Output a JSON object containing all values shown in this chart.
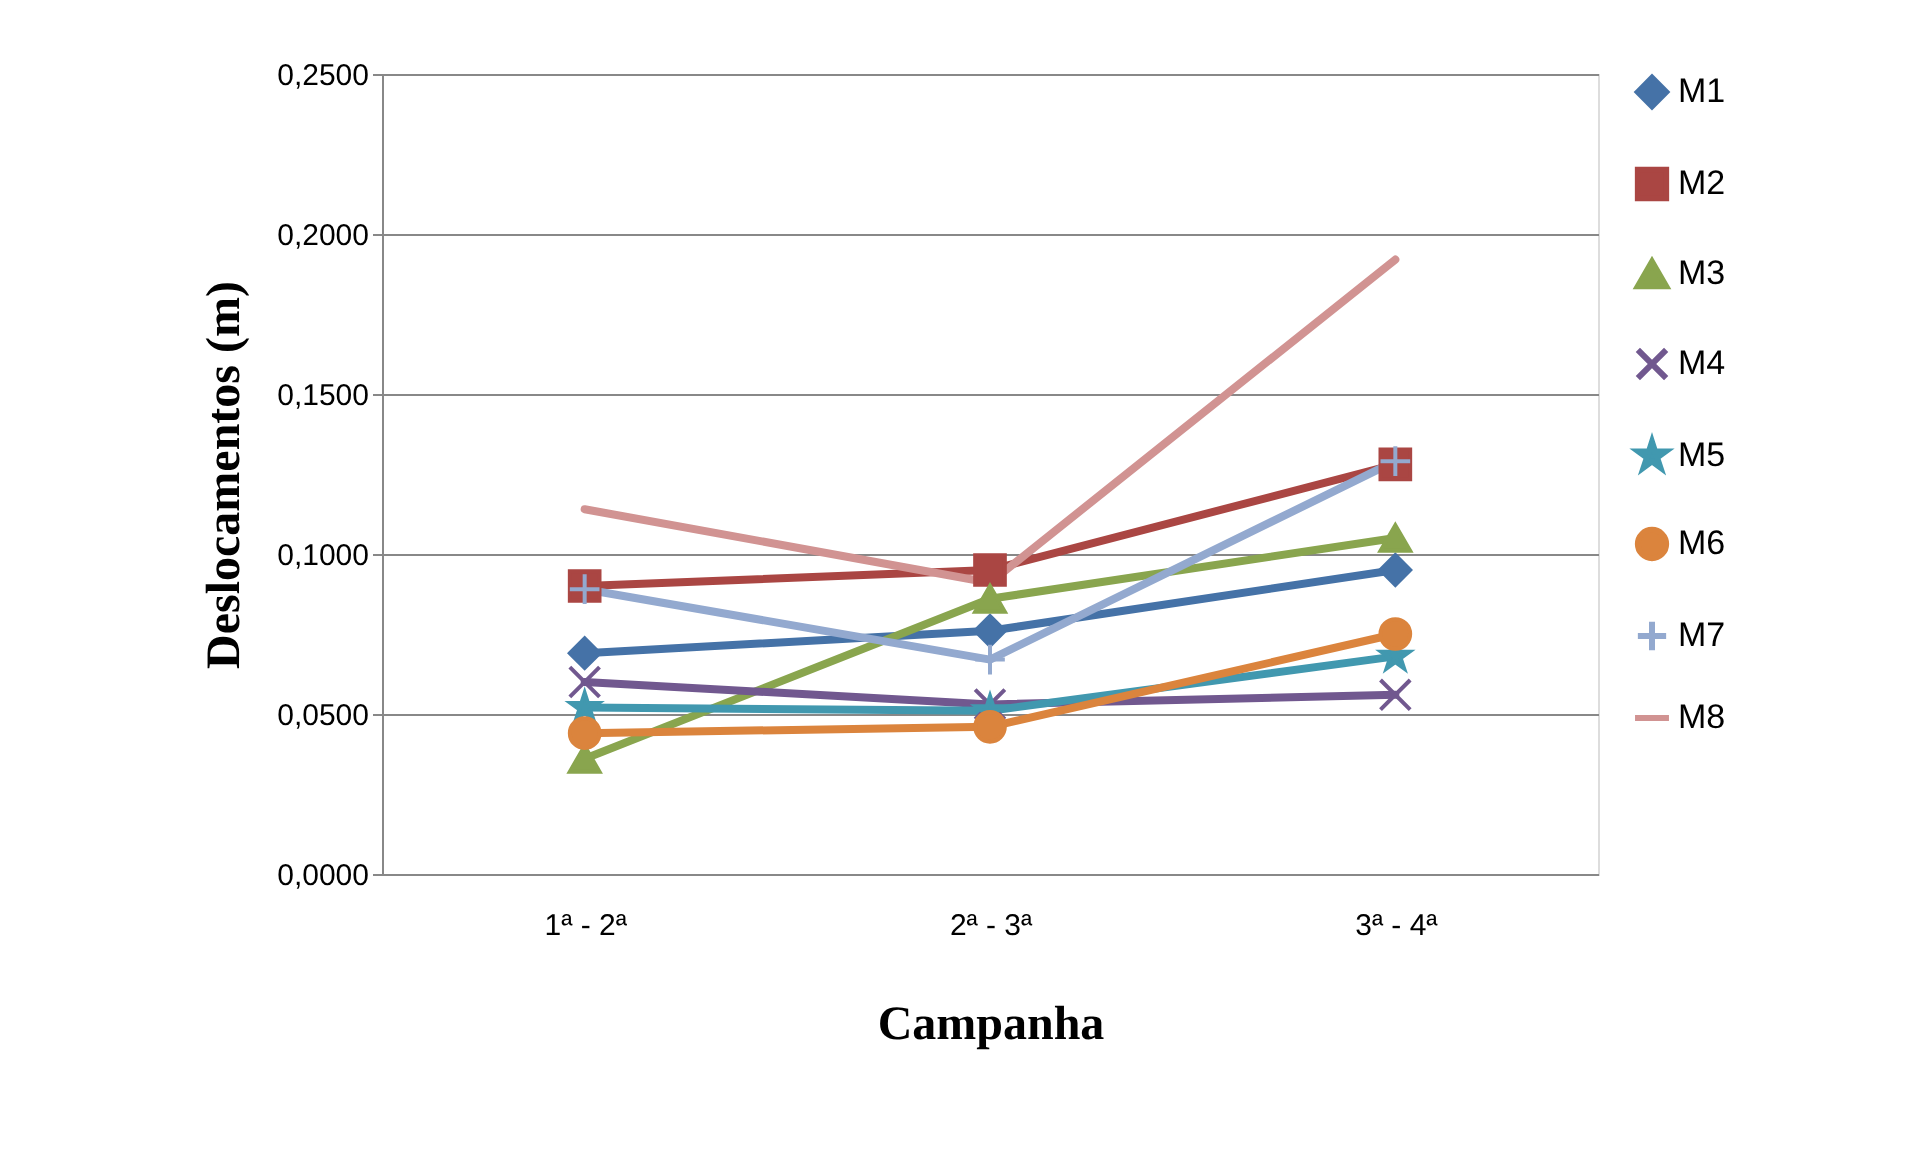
{
  "chart_data": {
    "type": "line",
    "xlabel": "Campanha",
    "ylabel": "Deslocamentos (m)",
    "categories": [
      "1ª - 2ª",
      "2ª - 3ª",
      "3ª - 4ª"
    ],
    "ylim": [
      0,
      0.25
    ],
    "yticks": [
      {
        "value": 0,
        "label": "0,0000"
      },
      {
        "value": 0.05,
        "label": "0,0500"
      },
      {
        "value": 0.1,
        "label": "0,1000"
      },
      {
        "value": 0.15,
        "label": "0,1500"
      },
      {
        "value": 0.2,
        "label": "0,2000"
      },
      {
        "value": 0.25,
        "label": "0,2500"
      }
    ],
    "grid": "y",
    "legend": "right",
    "line_style": "solid",
    "series": [
      {
        "name": "M1",
        "color": "#4572a7",
        "marker": "diamond",
        "values": [
          0.069,
          0.076,
          0.095
        ]
      },
      {
        "name": "M2",
        "color": "#aa4643",
        "marker": "square",
        "values": [
          0.09,
          0.095,
          0.128
        ]
      },
      {
        "name": "M3",
        "color": "#89a54e",
        "marker": "triangle",
        "values": [
          0.036,
          0.086,
          0.105
        ]
      },
      {
        "name": "M4",
        "color": "#71588f",
        "marker": "cross",
        "values": [
          0.06,
          0.053,
          0.056
        ]
      },
      {
        "name": "M5",
        "color": "#4198af",
        "marker": "star",
        "values": [
          0.052,
          0.051,
          0.068
        ]
      },
      {
        "name": "M6",
        "color": "#db843d",
        "marker": "circle",
        "values": [
          0.044,
          0.046,
          0.075
        ]
      },
      {
        "name": "M7",
        "color": "#93a9cf",
        "marker": "plus",
        "values": [
          0.089,
          0.067,
          0.129
        ]
      },
      {
        "name": "M8",
        "color": "#d19392",
        "marker": "none",
        "values": [
          0.114,
          0.091,
          0.192
        ]
      }
    ]
  }
}
